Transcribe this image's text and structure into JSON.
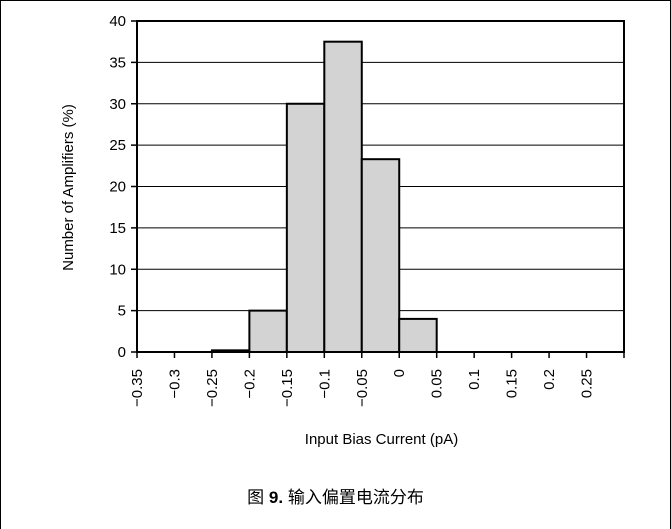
{
  "chart_data": {
    "type": "bar",
    "categories": [
      "-0.35",
      "-0.3",
      "-0.25",
      "-0.2",
      "-0.15",
      "-0.1",
      "-0.05",
      "0",
      "0.05",
      "0.1",
      "0.15",
      "0.2",
      "0.25"
    ],
    "bins": [
      {
        "from": -0.35,
        "to": -0.3,
        "value": 0
      },
      {
        "from": -0.3,
        "to": -0.25,
        "value": 0
      },
      {
        "from": -0.25,
        "to": -0.2,
        "value": 0.2
      },
      {
        "from": -0.2,
        "to": -0.15,
        "value": 5
      },
      {
        "from": -0.15,
        "to": -0.1,
        "value": 30
      },
      {
        "from": -0.1,
        "to": -0.05,
        "value": 37.5
      },
      {
        "from": -0.05,
        "to": 0,
        "value": 23.3
      },
      {
        "from": 0,
        "to": 0.05,
        "value": 4
      },
      {
        "from": 0.05,
        "to": 0.1,
        "value": 0
      },
      {
        "from": 0.1,
        "to": 0.15,
        "value": 0
      },
      {
        "from": 0.15,
        "to": 0.2,
        "value": 0
      },
      {
        "from": 0.2,
        "to": 0.25,
        "value": 0
      },
      {
        "from": 0.25,
        "to": 0.3,
        "value": 0
      }
    ],
    "xlabel": "Input Bias Current (pA)",
    "ylabel": "Number of Amplifiers (%)",
    "ylim": [
      0,
      40
    ],
    "yticks": [
      0,
      5,
      10,
      15,
      20,
      25,
      30,
      35,
      40
    ],
    "xtick_labels": [
      "−0.35",
      "−0.3",
      "−0.25",
      "−0.2",
      "−0.15",
      "−0.1",
      "−0.05",
      "0",
      "0.05",
      "0.1",
      "0.15",
      "0.2",
      "0.25"
    ],
    "grid": "horizontal",
    "colors": {
      "bar_fill": "#d3d3d3",
      "bar_stroke": "#000000"
    }
  },
  "caption": {
    "prefix": "图",
    "number": "9.",
    "text": "输入偏置电流分布"
  }
}
